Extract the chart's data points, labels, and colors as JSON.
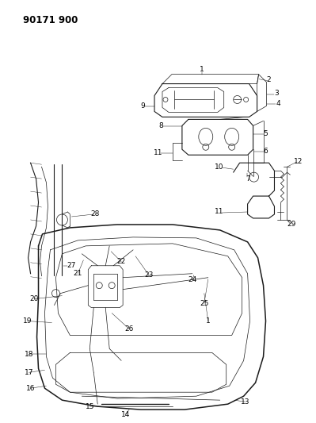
{
  "title": "90171 900",
  "bg_color": "#ffffff",
  "line_color": "#1a1a1a",
  "label_color": "#000000",
  "title_fontsize": 8.5,
  "label_fontsize": 6.5,
  "fig_width": 3.99,
  "fig_height": 5.33
}
